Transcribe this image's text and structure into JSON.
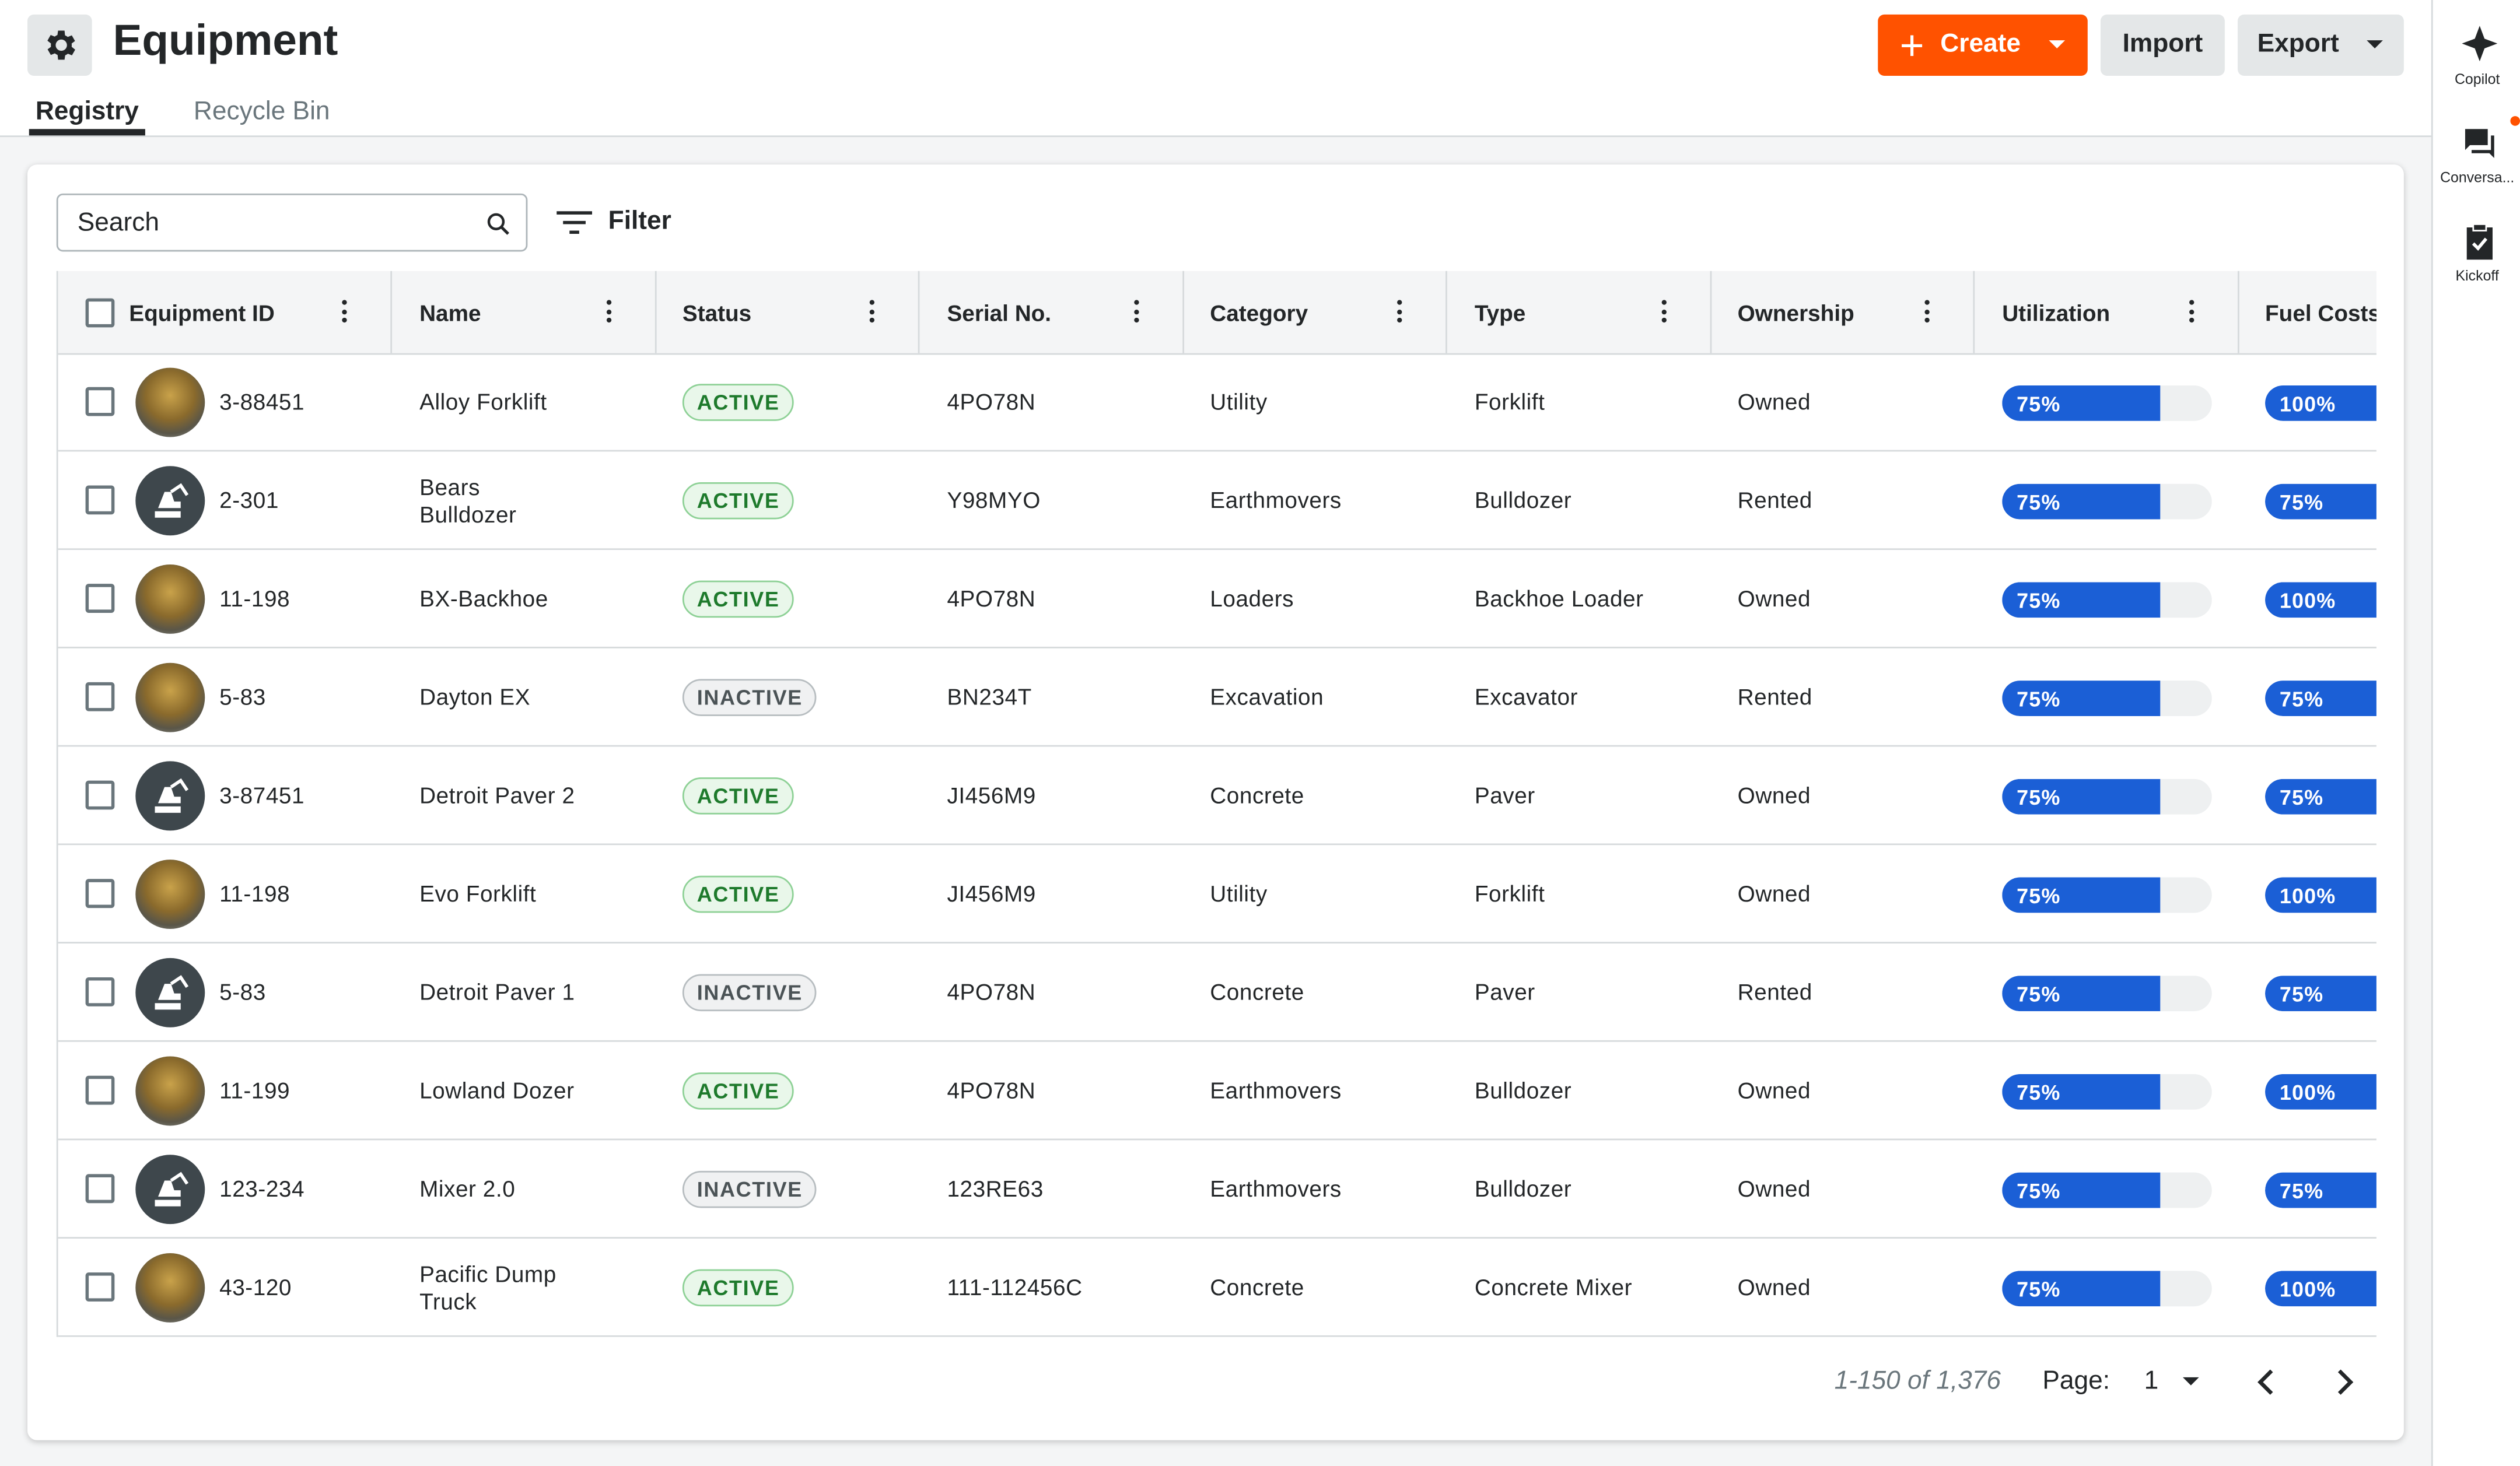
{
  "header": {
    "title": "Equipment",
    "buttons": {
      "create": "Create",
      "import": "Import",
      "export": "Export"
    }
  },
  "tabs": [
    "Registry",
    "Recycle Bin"
  ],
  "toolbar": {
    "search": "Search",
    "filter": "Filter"
  },
  "table": {
    "columns": [
      "Equipment ID",
      "Name",
      "Status",
      "Serial No.",
      "Category",
      "Type",
      "Ownership",
      "Utilization",
      "Fuel Costs"
    ],
    "rows": [
      {
        "avatar": "photo",
        "cells": [
          "3-88451",
          "Alloy Forklift",
          "ACTIVE",
          "4PO78N",
          "Utility",
          "Forklift",
          "Owned",
          "75%",
          "100%"
        ]
      },
      {
        "avatar": "icon",
        "cells": [
          "2-301",
          "Bears Bulldozer",
          "ACTIVE",
          "Y98MYO",
          "Earthmovers",
          "Bulldozer",
          "Rented",
          "75%",
          "75%"
        ]
      },
      {
        "avatar": "photo",
        "cells": [
          "11-198",
          "BX-Backhoe",
          "ACTIVE",
          "4PO78N",
          "Loaders",
          "Backhoe Loader",
          "Owned",
          "75%",
          "100%"
        ]
      },
      {
        "avatar": "photo",
        "cells": [
          "5-83",
          "Dayton EX",
          "INACTIVE",
          "BN234T",
          "Excavation",
          "Excavator",
          "Rented",
          "75%",
          "75%"
        ]
      },
      {
        "avatar": "icon",
        "cells": [
          "3-87451",
          "Detroit Paver 2",
          "ACTIVE",
          "JI456M9",
          "Concrete",
          "Paver",
          "Owned",
          "75%",
          "75%"
        ]
      },
      {
        "avatar": "photo",
        "cells": [
          "11-198",
          "Evo Forklift",
          "ACTIVE",
          "JI456M9",
          "Utility",
          "Forklift",
          "Owned",
          "75%",
          "100%"
        ]
      },
      {
        "avatar": "icon",
        "cells": [
          "5-83",
          "Detroit Paver 1",
          "INACTIVE",
          "4PO78N",
          "Concrete",
          "Paver",
          "Rented",
          "75%",
          "75%"
        ]
      },
      {
        "avatar": "photo",
        "cells": [
          "11-199",
          "Lowland Dozer",
          "ACTIVE",
          "4PO78N",
          "Earthmovers",
          "Bulldozer",
          "Owned",
          "75%",
          "100%"
        ]
      },
      {
        "avatar": "icon",
        "cells": [
          "123-234",
          "Mixer 2.0",
          "INACTIVE",
          "123RE63",
          "Earthmovers",
          "Bulldozer",
          "Owned",
          "75%",
          "75%"
        ]
      },
      {
        "avatar": "photo",
        "cells": [
          "43-120",
          "Pacific Dump Truck",
          "ACTIVE",
          "111-112456C",
          "Concrete",
          "Concrete Mixer",
          "Owned",
          "75%",
          "100%"
        ]
      }
    ]
  },
  "pagination": {
    "range": "1-150 of 1,376",
    "page_label": "Page:",
    "page": "1"
  },
  "sidebar": [
    "Copilot",
    "Conversa...",
    "Kickoff"
  ]
}
